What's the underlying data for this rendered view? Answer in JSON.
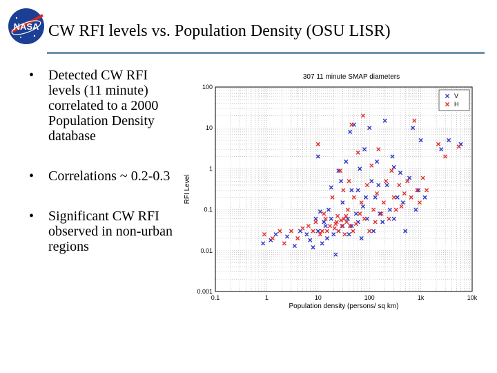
{
  "slide": {
    "title": "CW RFI levels vs. Population Density (OSU LISR)",
    "logo_text": "NASA",
    "bullets": [
      "Detected CW RFI levels (11 minute) correlated to a 2000 Population Density database",
      "Correlations ~ 0.2-0.3",
      "Significant CW RFI observed in non-urban regions"
    ]
  },
  "chart_data": {
    "type": "scatter",
    "title": "307 11 minute SMAP diameters",
    "xlabel": "Population density (persons/ sq km)",
    "ylabel": "RFI Level",
    "xscale": "log",
    "yscale": "log",
    "xlim": [
      0.1,
      10000
    ],
    "ylim": [
      0.001,
      100
    ],
    "xticks": [
      "0.1",
      "1",
      "10",
      "100",
      "1k",
      "10k"
    ],
    "yticks": [
      "100",
      "10",
      "1",
      "0.1",
      "0.01",
      "0.001"
    ],
    "grid": true,
    "legend": "top-right",
    "series": [
      {
        "name": "V",
        "color": "#2b35c8",
        "marker": "x",
        "points": [
          [
            0.85,
            0.015
          ],
          [
            1.2,
            0.018
          ],
          [
            1.5,
            0.025
          ],
          [
            2.5,
            0.022
          ],
          [
            3.5,
            0.013
          ],
          [
            4.5,
            0.03
          ],
          [
            6,
            0.025
          ],
          [
            7,
            0.018
          ],
          [
            8,
            0.012
          ],
          [
            9,
            0.06
          ],
          [
            10,
            2.0
          ],
          [
            10,
            0.03
          ],
          [
            11,
            0.09
          ],
          [
            12,
            0.015
          ],
          [
            13,
            0.05
          ],
          [
            14,
            0.04
          ],
          [
            15,
            0.02
          ],
          [
            16,
            0.1
          ],
          [
            18,
            0.06
          ],
          [
            20,
            0.025
          ],
          [
            22,
            0.008
          ],
          [
            25,
            0.03
          ],
          [
            28,
            0.5
          ],
          [
            30,
            0.04
          ],
          [
            30,
            0.15
          ],
          [
            35,
            1.5
          ],
          [
            38,
            0.06
          ],
          [
            40,
            0.025
          ],
          [
            42,
            8.0
          ],
          [
            45,
            0.3
          ],
          [
            50,
            12.0
          ],
          [
            55,
            0.08
          ],
          [
            60,
            0.05
          ],
          [
            65,
            1.0
          ],
          [
            70,
            0.02
          ],
          [
            80,
            3.0
          ],
          [
            85,
            0.2
          ],
          [
            90,
            0.06
          ],
          [
            100,
            10.0
          ],
          [
            110,
            0.5
          ],
          [
            120,
            0.03
          ],
          [
            130,
            0.2
          ],
          [
            140,
            1.5
          ],
          [
            160,
            0.08
          ],
          [
            180,
            0.05
          ],
          [
            200,
            15.0
          ],
          [
            220,
            0.4
          ],
          [
            250,
            0.1
          ],
          [
            280,
            2.0
          ],
          [
            300,
            0.06
          ],
          [
            350,
            0.2
          ],
          [
            400,
            0.8
          ],
          [
            450,
            0.15
          ],
          [
            500,
            0.03
          ],
          [
            600,
            0.6
          ],
          [
            700,
            10.0
          ],
          [
            800,
            0.1
          ],
          [
            900,
            0.3
          ],
          [
            1000,
            5.0
          ],
          [
            1200,
            0.2
          ],
          [
            2500,
            3.0
          ],
          [
            3500,
            5.0
          ],
          [
            6000,
            4.0
          ],
          [
            18,
            0.35
          ],
          [
            25,
            0.9
          ],
          [
            60,
            0.3
          ],
          [
            150,
            0.4
          ],
          [
            300,
            1.1
          ],
          [
            45,
            0.04
          ],
          [
            75,
            0.12
          ]
        ]
      },
      {
        "name": "H",
        "color": "#e03030",
        "marker": "x",
        "points": [
          [
            0.9,
            0.025
          ],
          [
            1.3,
            0.02
          ],
          [
            1.8,
            0.03
          ],
          [
            2.2,
            0.015
          ],
          [
            3,
            0.03
          ],
          [
            4,
            0.02
          ],
          [
            5,
            0.035
          ],
          [
            6.5,
            0.04
          ],
          [
            8,
            0.03
          ],
          [
            9,
            0.05
          ],
          [
            10,
            4.0
          ],
          [
            11,
            0.025
          ],
          [
            12,
            0.03
          ],
          [
            13,
            0.08
          ],
          [
            14,
            0.06
          ],
          [
            15,
            0.03
          ],
          [
            17,
            0.04
          ],
          [
            19,
            0.2
          ],
          [
            21,
            0.035
          ],
          [
            23,
            0.05
          ],
          [
            25,
            0.03
          ],
          [
            27,
            0.9
          ],
          [
            29,
            0.04
          ],
          [
            31,
            0.3
          ],
          [
            33,
            0.025
          ],
          [
            35,
            0.07
          ],
          [
            38,
            0.1
          ],
          [
            40,
            0.5
          ],
          [
            42,
            0.04
          ],
          [
            45,
            12.0
          ],
          [
            48,
            0.03
          ],
          [
            50,
            0.2
          ],
          [
            55,
            0.045
          ],
          [
            60,
            2.5
          ],
          [
            65,
            0.08
          ],
          [
            70,
            0.15
          ],
          [
            75,
            20.0
          ],
          [
            80,
            0.06
          ],
          [
            90,
            0.4
          ],
          [
            100,
            0.03
          ],
          [
            110,
            1.2
          ],
          [
            120,
            0.1
          ],
          [
            130,
            0.05
          ],
          [
            140,
            0.25
          ],
          [
            150,
            3.0
          ],
          [
            170,
            0.08
          ],
          [
            190,
            0.15
          ],
          [
            210,
            0.5
          ],
          [
            240,
            0.06
          ],
          [
            270,
            0.9
          ],
          [
            300,
            0.2
          ],
          [
            330,
            0.1
          ],
          [
            380,
            0.4
          ],
          [
            420,
            0.12
          ],
          [
            480,
            0.25
          ],
          [
            550,
            0.5
          ],
          [
            650,
            0.2
          ],
          [
            750,
            15.0
          ],
          [
            850,
            0.3
          ],
          [
            950,
            0.15
          ],
          [
            1100,
            0.6
          ],
          [
            1300,
            0.3
          ],
          [
            2200,
            4.0
          ],
          [
            3000,
            2.0
          ],
          [
            5500,
            3.5
          ],
          [
            22,
            0.045
          ],
          [
            28,
            0.055
          ],
          [
            32,
            0.06
          ],
          [
            36,
            0.05
          ],
          [
            24,
            0.07
          ]
        ]
      }
    ]
  }
}
